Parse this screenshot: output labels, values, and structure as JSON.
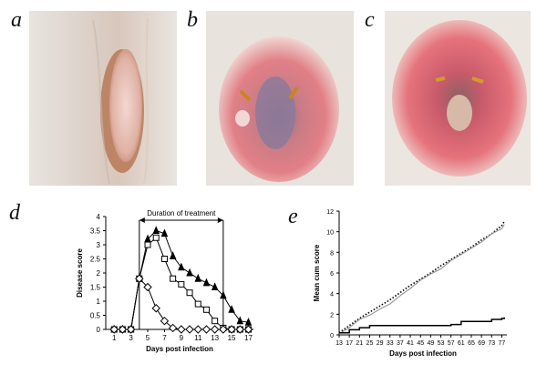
{
  "panel_letters": {
    "a": "a",
    "b": "b",
    "c": "c",
    "d": "d",
    "e": "e"
  },
  "chart_data": [
    {
      "type": "line",
      "panel": "d",
      "title": "",
      "xlabel": "Days post infection",
      "ylabel": "Disease score",
      "annotation": "Duration of treatment",
      "treatment_window": [
        4,
        14
      ],
      "xlim": [
        0,
        17.6
      ],
      "ylim": [
        0,
        4
      ],
      "x_ticks": [
        "1",
        "3",
        "5",
        "7",
        "9",
        "11",
        "13",
        "15",
        "17"
      ],
      "y_ticks": [
        "0",
        "0.5",
        "1",
        "1.5",
        "2",
        "2.5",
        "3",
        "3.5",
        "4"
      ],
      "grid": false,
      "series": [
        {
          "marker": "triangle",
          "x": [
            1,
            2,
            3,
            4,
            5,
            6,
            7,
            8,
            9,
            10,
            11,
            12,
            13,
            14,
            15,
            16,
            17
          ],
          "values": [
            0,
            0,
            0,
            1.8,
            3.2,
            3.5,
            3.4,
            2.6,
            2.2,
            2.0,
            1.8,
            1.65,
            1.5,
            1.2,
            0.7,
            0.3,
            0.25
          ]
        },
        {
          "marker": "square",
          "x": [
            1,
            2,
            3,
            4,
            5,
            6,
            7,
            8,
            9,
            10,
            11,
            12,
            13,
            14,
            15,
            16,
            17
          ],
          "values": [
            0,
            0,
            0,
            1.8,
            3.0,
            3.25,
            2.5,
            1.8,
            1.6,
            1.3,
            0.9,
            0.7,
            0.3,
            0.05,
            0,
            0,
            0
          ]
        },
        {
          "marker": "diamond",
          "x": [
            1,
            2,
            3,
            4,
            5,
            6,
            7,
            8,
            9,
            10,
            11,
            12,
            13,
            14,
            15,
            16,
            17
          ],
          "values": [
            0,
            0,
            0,
            1.8,
            1.5,
            0.75,
            0.3,
            0.05,
            0,
            0,
            0,
            0,
            0,
            0,
            0,
            0,
            0
          ]
        }
      ]
    },
    {
      "type": "line",
      "panel": "e",
      "title": "",
      "xlabel": "Days post infection",
      "ylabel": "Mean cum score",
      "xlim": [
        13,
        79
      ],
      "ylim": [
        0,
        12
      ],
      "x_ticks": [
        "13",
        "17",
        "21",
        "25",
        "29",
        "33",
        "37",
        "41",
        "45",
        "49",
        "53",
        "57",
        "61",
        "65",
        "69",
        "73",
        "77"
      ],
      "y_ticks": [
        "0",
        "2",
        "4",
        "6",
        "8",
        "10",
        "12"
      ],
      "grid": false,
      "series": [
        {
          "style": "dotted",
          "x": [
            13,
            17,
            21,
            25,
            29,
            33,
            37,
            41,
            45,
            49,
            53,
            57,
            61,
            65,
            69,
            73,
            77,
            78
          ],
          "values": [
            0.2,
            0.9,
            1.6,
            2.2,
            2.8,
            3.4,
            4.1,
            4.8,
            5.4,
            6.0,
            6.7,
            7.3,
            7.9,
            8.5,
            9.2,
            9.8,
            10.6,
            11.0
          ]
        },
        {
          "style": "grey-step",
          "x": [
            13,
            17,
            21,
            25,
            29,
            33,
            37,
            41,
            45,
            49,
            53,
            57,
            61,
            65,
            69,
            73,
            77,
            78
          ],
          "values": [
            0.1,
            0.7,
            1.5,
            1.9,
            2.5,
            3.0,
            3.8,
            4.5,
            5.3,
            5.9,
            6.4,
            7.2,
            7.8,
            8.4,
            9.0,
            9.8,
            10.3,
            10.7
          ]
        },
        {
          "style": "solid-black",
          "x": [
            13,
            17,
            21,
            25,
            29,
            33,
            37,
            41,
            45,
            49,
            53,
            57,
            61,
            65,
            69,
            73,
            77,
            78
          ],
          "values": [
            0.2,
            0.5,
            0.7,
            0.9,
            0.9,
            0.9,
            0.9,
            0.9,
            0.9,
            0.9,
            0.9,
            1.0,
            1.3,
            1.3,
            1.3,
            1.5,
            1.6,
            1.7
          ]
        }
      ]
    }
  ]
}
